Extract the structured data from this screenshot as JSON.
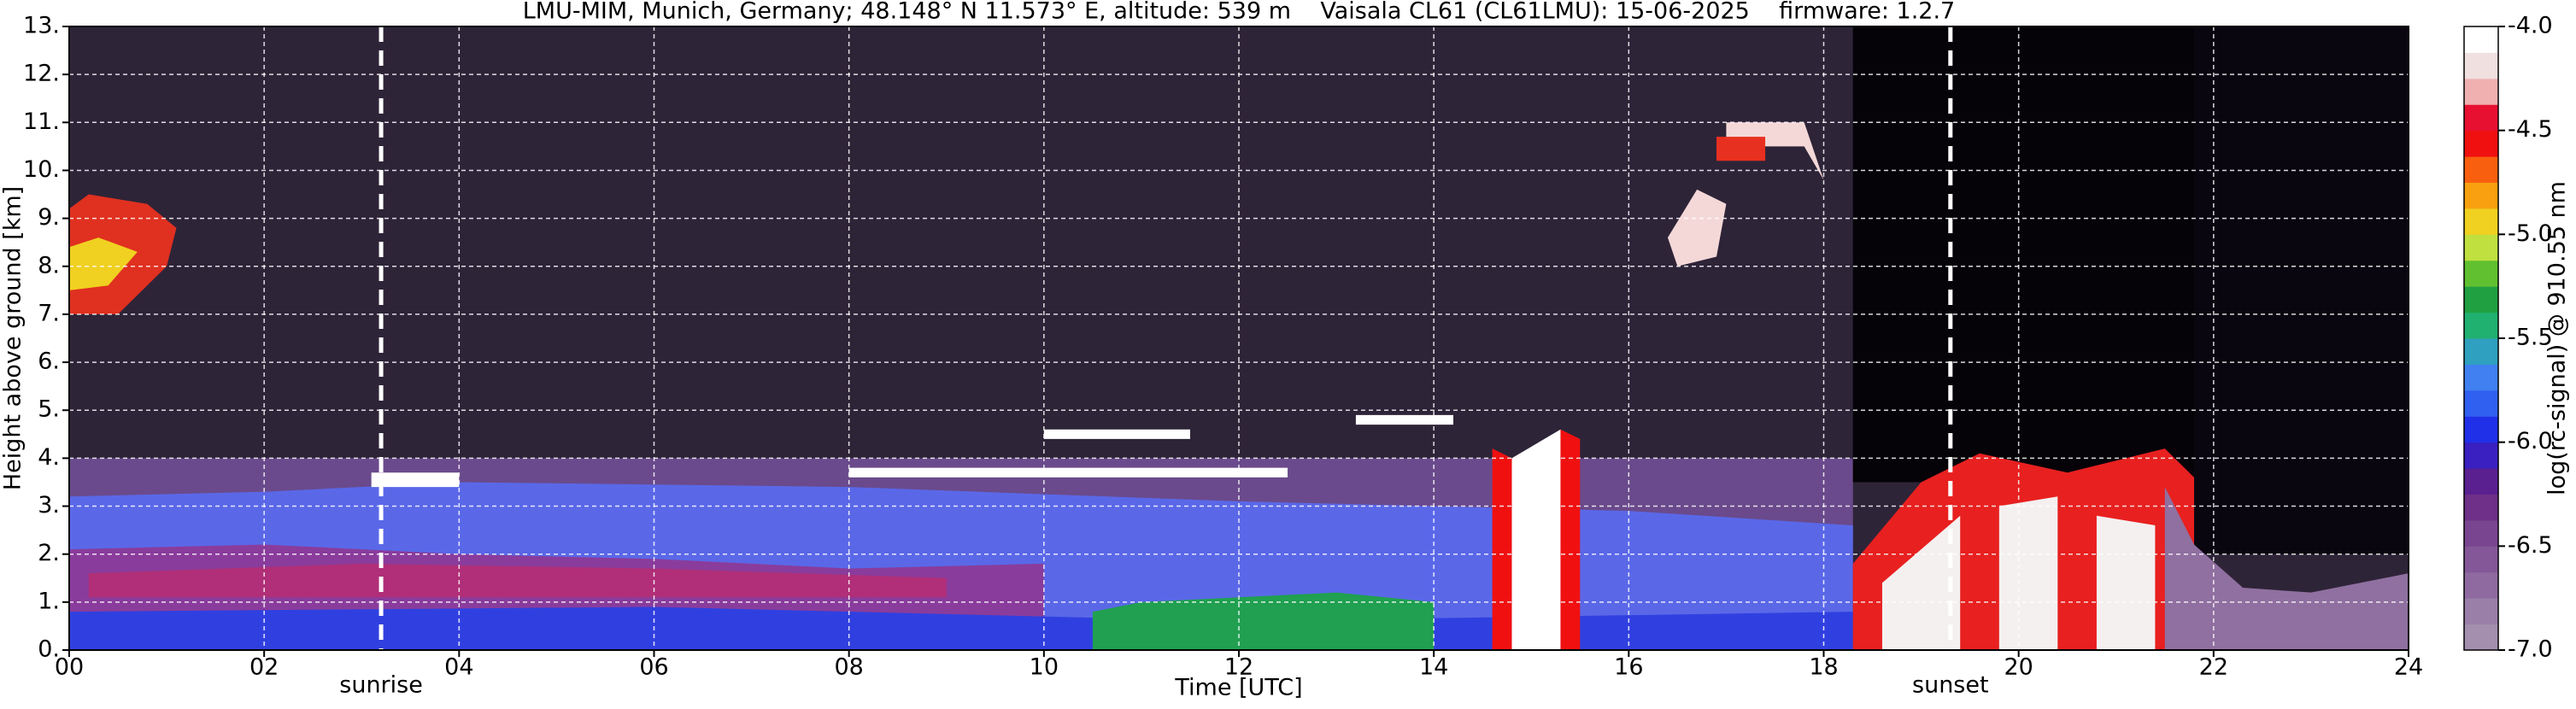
{
  "chart_data": {
    "type": "heatmap",
    "title": "LMU-MIM, Munich, Germany; 48.148° N 11.573° E, altitude: 539 m    Vaisala CL61 (CL61LMU): 15-06-2025    firmware: 1.2.7",
    "xlabel": "Time [UTC]",
    "ylabel": "Height above ground [km]",
    "xlim": [
      0,
      24
    ],
    "xticks": [
      {
        "value": 0,
        "label": "00"
      },
      {
        "value": 2,
        "label": "02"
      },
      {
        "value": 4,
        "label": "04"
      },
      {
        "value": 6,
        "label": "06"
      },
      {
        "value": 8,
        "label": "08"
      },
      {
        "value": 10,
        "label": "10"
      },
      {
        "value": 12,
        "label": "12"
      },
      {
        "value": 14,
        "label": "14"
      },
      {
        "value": 16,
        "label": "16"
      },
      {
        "value": 18,
        "label": "18"
      },
      {
        "value": 20,
        "label": "20"
      },
      {
        "value": 22,
        "label": "22"
      },
      {
        "value": 24,
        "label": "24"
      }
    ],
    "ylim": [
      0,
      13
    ],
    "yticks": [
      {
        "value": 0,
        "label": "0."
      },
      {
        "value": 1,
        "label": "1."
      },
      {
        "value": 2,
        "label": "2."
      },
      {
        "value": 3,
        "label": "3."
      },
      {
        "value": 4,
        "label": "4."
      },
      {
        "value": 5,
        "label": "5."
      },
      {
        "value": 6,
        "label": "6."
      },
      {
        "value": 7,
        "label": "7."
      },
      {
        "value": 8,
        "label": "8."
      },
      {
        "value": 9,
        "label": "9."
      },
      {
        "value": 10,
        "label": "10."
      },
      {
        "value": 11,
        "label": "11."
      },
      {
        "value": 12,
        "label": "12."
      },
      {
        "value": 13,
        "label": "13."
      }
    ],
    "grid": true,
    "annotations": [
      {
        "text": "sunrise",
        "x": 3.2
      },
      {
        "text": "sunset",
        "x": 19.3
      }
    ],
    "colorbar": {
      "label": "log(rc-signal) @ 910.55 nm",
      "clim": [
        -7,
        -4
      ],
      "ticks": [
        {
          "value": -7,
          "label": "-7.0"
        },
        {
          "value": -6.5,
          "label": "-6.5"
        },
        {
          "value": -6,
          "label": "-6.0"
        },
        {
          "value": -5.5,
          "label": "-5.5"
        },
        {
          "value": -5,
          "label": "-5.0"
        },
        {
          "value": -4.5,
          "label": "-4.5"
        },
        {
          "value": -4,
          "label": "-4.0"
        }
      ],
      "colors": [
        "#a48fae",
        "#9a7fa8",
        "#8f6aa0",
        "#845898",
        "#7a4590",
        "#6e3088",
        "#5a2090",
        "#3a20c0",
        "#2030e8",
        "#3060f0",
        "#4080f0",
        "#30a0c0",
        "#20b070",
        "#20a040",
        "#60c030",
        "#c0e040",
        "#f0d020",
        "#f8a010",
        "#f86010",
        "#f01010",
        "#e81030",
        "#f0b0b0",
        "#f0e0e0",
        "#ffffff"
      ]
    }
  }
}
